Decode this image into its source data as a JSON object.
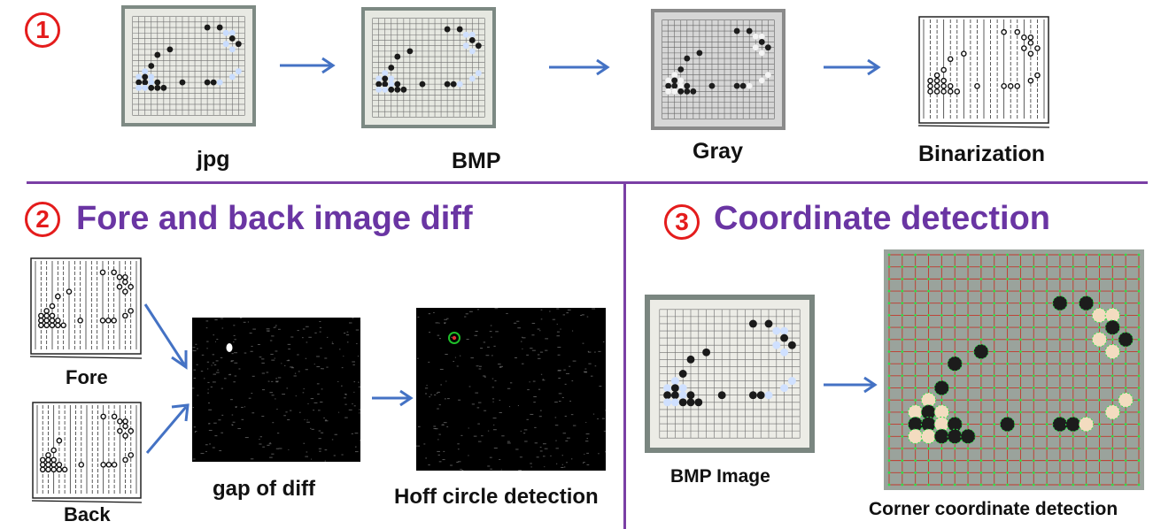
{
  "section1": {
    "number": "1",
    "labels": {
      "jpg": "jpg",
      "bmp": "BMP",
      "gray": "Gray",
      "binarization": "Binarization"
    }
  },
  "section2": {
    "number": "2",
    "title": "Fore and back image diff",
    "labels": {
      "fore": "Fore",
      "back": "Back",
      "gap": "gap of diff",
      "hoff": "Hoff circle detection"
    }
  },
  "section3": {
    "number": "3",
    "title": "Coordinate detection",
    "labels": {
      "bmp_image": "BMP Image",
      "corner": "Corner coordinate detection"
    }
  },
  "colors": {
    "accent_purple": "#6a35a3",
    "badge_red": "#e41c1c",
    "arrow_blue": "#4472c4"
  }
}
